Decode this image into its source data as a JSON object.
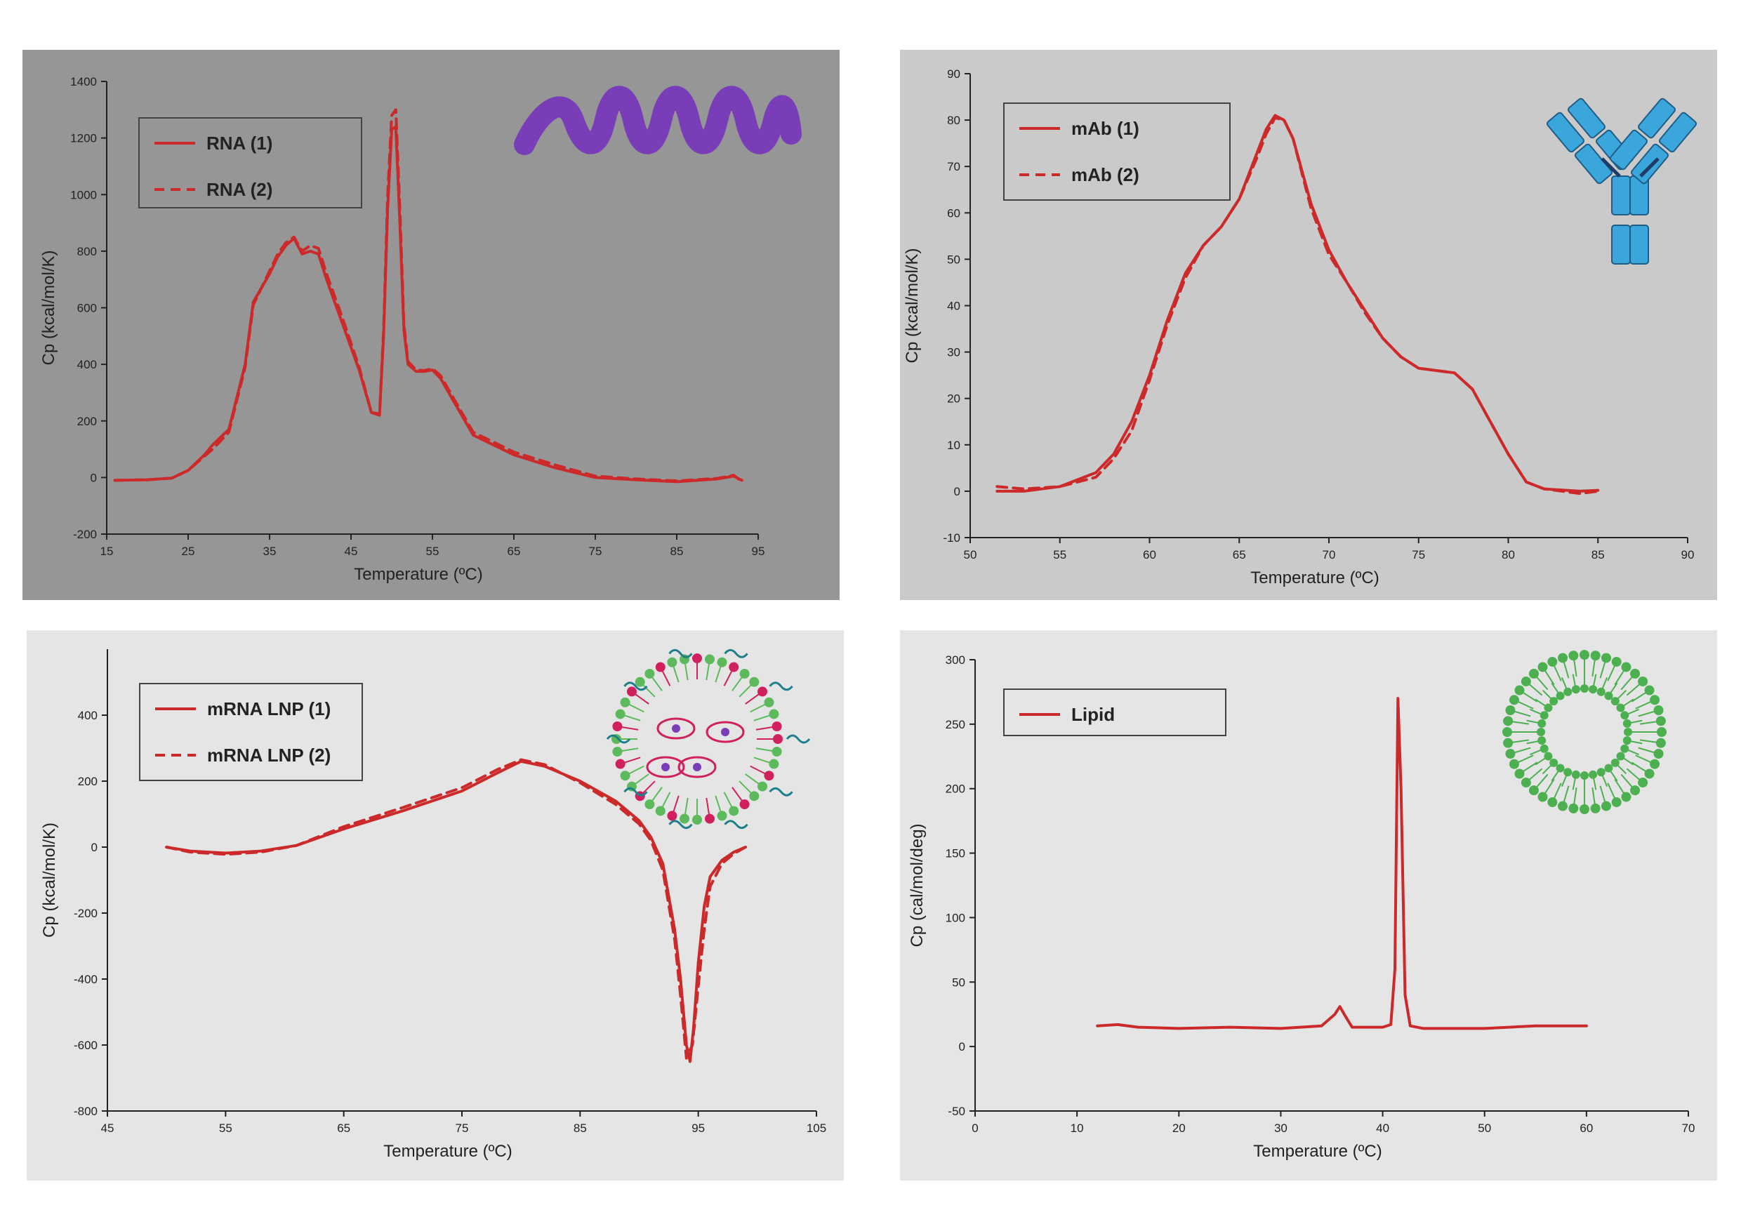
{
  "chart_data": [
    {
      "type": "line",
      "background": "#969696",
      "icon": "rna-strand-icon",
      "icon_color": "#7a3db8",
      "xlabel": "Temperature (ºC)",
      "ylabel": "Cp (kcal/mol/K)",
      "xlim": [
        15,
        95
      ],
      "ylim": [
        -200,
        1400
      ],
      "xticks": [
        15,
        25,
        35,
        45,
        55,
        65,
        75,
        85,
        95
      ],
      "yticks": [
        -200,
        0,
        200,
        400,
        600,
        800,
        1000,
        1200,
        1400
      ],
      "legend_position": "top-left",
      "series": [
        {
          "name": "RNA (1)",
          "style": "solid",
          "color": "#cc2a2a",
          "x": [
            16,
            20,
            23,
            25,
            27,
            28,
            30,
            32,
            33,
            35,
            36,
            37,
            38,
            39,
            40,
            41,
            42,
            43,
            44,
            46,
            47.5,
            48.5,
            49,
            49.5,
            50,
            50.5,
            51,
            51.5,
            52,
            53,
            54,
            55,
            56,
            58,
            60,
            65,
            70,
            75,
            80,
            85,
            90,
            92,
            93
          ],
          "y": [
            -10,
            -8,
            -2,
            25,
            80,
            115,
            170,
            400,
            620,
            720,
            780,
            820,
            845,
            790,
            800,
            790,
            700,
            620,
            540,
            380,
            230,
            220,
            500,
            950,
            1230,
            1240,
            900,
            520,
            400,
            375,
            375,
            380,
            350,
            250,
            150,
            80,
            35,
            0,
            -8,
            -15,
            -5,
            5,
            -10
          ]
        },
        {
          "name": "RNA (2)",
          "style": "dashed",
          "color": "#cc2a2a",
          "x": [
            16,
            20,
            23,
            25,
            27,
            28,
            30,
            32,
            33,
            35,
            36,
            37,
            38,
            39,
            40,
            41,
            42,
            43,
            44,
            46,
            47.5,
            48.5,
            49,
            49.5,
            50,
            50.5,
            51,
            51.5,
            52,
            53,
            54,
            55,
            56,
            58,
            60,
            65,
            70,
            75,
            80,
            85,
            90,
            92,
            93
          ],
          "y": [
            -10,
            -8,
            -2,
            25,
            75,
            100,
            160,
            390,
            610,
            730,
            790,
            830,
            850,
            800,
            820,
            810,
            720,
            640,
            560,
            390,
            230,
            225,
            520,
            1000,
            1280,
            1300,
            950,
            540,
            410,
            380,
            378,
            385,
            360,
            260,
            160,
            90,
            45,
            5,
            -5,
            -12,
            -3,
            8,
            -15
          ]
        }
      ],
      "legend_entries": [
        "RNA (1)",
        "RNA (2)"
      ]
    },
    {
      "type": "line",
      "background": "#cacaca",
      "icon": "antibody-icon",
      "icon_color": "#3aa6dc",
      "xlabel": "Temperature (ºC)",
      "ylabel": "Cp (kcal/mol/K)",
      "xlim": [
        50,
        90
      ],
      "ylim": [
        -10,
        90
      ],
      "xticks": [
        50,
        55,
        60,
        65,
        70,
        75,
        80,
        85,
        90
      ],
      "yticks": [
        -10,
        0,
        10,
        20,
        30,
        40,
        50,
        60,
        70,
        80,
        90
      ],
      "legend_position": "top-left",
      "series": [
        {
          "name": "mAb (1)",
          "style": "solid",
          "color": "#cc2a2a",
          "x": [
            51.5,
            53,
            55,
            57,
            58,
            59,
            60,
            61,
            62,
            63,
            64,
            65,
            66,
            66.5,
            67,
            67.5,
            68,
            69,
            70,
            71,
            72,
            73,
            74,
            75,
            76,
            77,
            78,
            79,
            80,
            81,
            82,
            84,
            85
          ],
          "y": [
            0,
            0,
            1,
            4,
            8,
            15,
            25,
            37,
            47,
            53,
            57,
            63,
            73,
            78,
            81,
            80,
            76,
            62,
            52,
            45,
            39,
            33,
            29,
            26.5,
            26,
            25.5,
            22,
            15,
            8,
            2,
            0.5,
            0,
            0.2
          ]
        },
        {
          "name": "mAb (2)",
          "style": "dashed",
          "color": "#cc2a2a",
          "x": [
            51.5,
            53,
            55,
            57,
            58,
            59,
            60,
            61,
            62,
            63,
            64,
            65,
            66,
            66.5,
            67,
            67.5,
            68,
            69,
            70,
            71,
            72,
            73,
            74,
            75,
            76,
            77,
            78,
            79,
            80,
            81,
            82,
            84,
            85
          ],
          "y": [
            1,
            0.5,
            1,
            3,
            7,
            13,
            24,
            36,
            46,
            53,
            57,
            63,
            72,
            77,
            80.5,
            80,
            76,
            61,
            51,
            45,
            38.5,
            33,
            29,
            26.5,
            26,
            25.5,
            22,
            15,
            8,
            2,
            0.5,
            -0.5,
            0
          ]
        }
      ],
      "legend_entries": [
        "mAb (1)",
        "mAb (2)"
      ]
    },
    {
      "type": "line",
      "background": "#e5e5e5",
      "icon": "lipid-nanoparticle-icon",
      "icon_color": "#d0215e",
      "xlabel": "Temperature (ºC)",
      "ylabel": "Cp (kcal/mol/K)",
      "xlim": [
        45,
        105
      ],
      "ylim": [
        -800,
        600
      ],
      "xticks": [
        45,
        55,
        65,
        75,
        85,
        95,
        105
      ],
      "yticks": [
        -800,
        -600,
        -400,
        -200,
        0,
        200,
        400
      ],
      "legend_position": "top-left",
      "series": [
        {
          "name": "mRNA LNP (1)",
          "style": "solid",
          "color": "#cc2a2a",
          "x": [
            50,
            52,
            55,
            58,
            61,
            65,
            70,
            75,
            78,
            80,
            82,
            85,
            88,
            90,
            91,
            92,
            93,
            93.5,
            94,
            94.3,
            94.6,
            95,
            95.5,
            96,
            97,
            98,
            99
          ],
          "y": [
            0,
            -12,
            -18,
            -12,
            5,
            55,
            110,
            170,
            225,
            260,
            245,
            200,
            140,
            80,
            30,
            -50,
            -250,
            -400,
            -600,
            -650,
            -550,
            -350,
            -180,
            -90,
            -40,
            -15,
            0
          ]
        },
        {
          "name": "mRNA LNP (2)",
          "style": "dashed",
          "color": "#cc2a2a",
          "x": [
            50,
            52,
            55,
            58,
            61,
            65,
            70,
            75,
            78,
            80,
            82,
            85,
            88,
            90,
            91,
            92,
            93,
            93.5,
            94,
            94.5,
            95,
            95.5,
            96,
            97,
            98,
            99
          ],
          "y": [
            0,
            -15,
            -22,
            -15,
            5,
            62,
            120,
            180,
            235,
            265,
            250,
            195,
            130,
            70,
            20,
            -70,
            -280,
            -450,
            -640,
            -600,
            -420,
            -250,
            -120,
            -50,
            -20,
            0
          ]
        }
      ],
      "legend_entries": [
        "mRNA LNP (1)",
        "mRNA LNP (2)"
      ]
    },
    {
      "type": "line",
      "background": "#e5e5e5",
      "icon": "liposome-icon",
      "icon_color": "#4caf50",
      "xlabel": "Temperature (ºC)",
      "ylabel": "Cp (cal/mol/deg)",
      "xlim": [
        0,
        70
      ],
      "ylim": [
        -50,
        300
      ],
      "xticks": [
        0,
        10,
        20,
        30,
        40,
        50,
        60,
        70
      ],
      "yticks": [
        -50,
        0,
        50,
        100,
        150,
        200,
        250,
        300
      ],
      "legend_position": "top-left",
      "series": [
        {
          "name": "Lipid",
          "style": "solid",
          "color": "#cc2a2a",
          "x": [
            12,
            14,
            16,
            20,
            25,
            30,
            34,
            35.3,
            35.8,
            36.3,
            37,
            40,
            40.8,
            41.2,
            41.5,
            41.8,
            42.2,
            42.7,
            44,
            50,
            55,
            60
          ],
          "y": [
            16,
            17,
            15,
            14,
            15,
            14,
            16,
            25,
            31,
            24,
            15,
            15,
            17,
            60,
            270,
            200,
            40,
            16,
            14,
            14,
            16,
            16
          ]
        }
      ],
      "legend_entries": [
        "Lipid"
      ]
    }
  ]
}
